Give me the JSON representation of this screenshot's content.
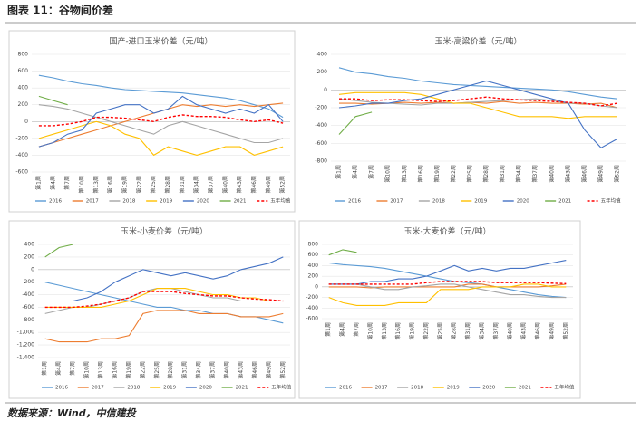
{
  "header": {
    "title": "图表 11：谷物间价差"
  },
  "source": "数据来源：Wind，中信建投",
  "chart_data": [
    {
      "type": "line",
      "title": "国产-进口玉米价差（元/吨）",
      "categories": [
        "第1周",
        "第4周",
        "第7周",
        "第10周",
        "第13周",
        "第16周",
        "第19周",
        "第22周",
        "第25周",
        "第28周",
        "第31周",
        "第34周",
        "第37周",
        "第40周",
        "第43周",
        "第46周",
        "第49周",
        "第52周"
      ],
      "ylim": [
        -600,
        800
      ],
      "yticks": [
        -600,
        -400,
        -200,
        0,
        200,
        400,
        600,
        800
      ],
      "series": [
        {
          "name": "2016",
          "color": "#5b9bd5",
          "values": [
            550,
            520,
            480,
            450,
            430,
            400,
            380,
            370,
            360,
            350,
            340,
            320,
            300,
            280,
            250,
            200,
            150,
            50
          ]
        },
        {
          "name": "2017",
          "color": "#ed7d31",
          "values": [
            -300,
            -250,
            -200,
            -150,
            -100,
            -50,
            0,
            50,
            100,
            150,
            200,
            180,
            200,
            180,
            200,
            180,
            200,
            220
          ]
        },
        {
          "name": "2018",
          "color": "#a5a5a5",
          "values": [
            200,
            180,
            150,
            100,
            50,
            0,
            -50,
            -100,
            -150,
            -50,
            0,
            -50,
            -100,
            -150,
            -200,
            -250,
            -250,
            -200
          ]
        },
        {
          "name": "2019",
          "color": "#ffc000",
          "values": [
            -200,
            -150,
            -100,
            -50,
            0,
            -50,
            -150,
            -200,
            -400,
            -300,
            -350,
            -400,
            -350,
            -300,
            -300,
            -400,
            -350,
            -300
          ]
        },
        {
          "name": "2020",
          "color": "#4472c4",
          "values": [
            -300,
            -250,
            -150,
            -100,
            100,
            150,
            200,
            200,
            100,
            150,
            300,
            200,
            150,
            100,
            150,
            100,
            200,
            0
          ]
        },
        {
          "name": "2021",
          "color": "#70ad47",
          "values": [
            300,
            250,
            200,
            null,
            null,
            null,
            null,
            null,
            null,
            null,
            null,
            null,
            null,
            null,
            null,
            null,
            null,
            null
          ]
        },
        {
          "name": "五年均值",
          "color": "#ff0000",
          "dashed": true,
          "values": [
            -50,
            -50,
            -30,
            0,
            50,
            50,
            40,
            20,
            0,
            50,
            80,
            60,
            60,
            50,
            20,
            0,
            20,
            -20
          ]
        }
      ]
    },
    {
      "type": "line",
      "title": "玉米-高粱价差（元/吨）",
      "categories": [
        "第1周",
        "第4周",
        "第7周",
        "第10周",
        "第13周",
        "第16周",
        "第19周",
        "第22周",
        "第25周",
        "第28周",
        "第31周",
        "第34周",
        "第37周",
        "第40周",
        "第43周",
        "第46周",
        "第49周",
        "第52周"
      ],
      "ylim": [
        -800,
        400
      ],
      "yticks": [
        -800,
        -600,
        -400,
        -200,
        0,
        200,
        400
      ],
      "series": [
        {
          "name": "2016",
          "color": "#5b9bd5",
          "values": [
            250,
            200,
            180,
            150,
            130,
            100,
            80,
            60,
            50,
            40,
            30,
            20,
            10,
            0,
            -20,
            -50,
            -80,
            -100
          ]
        },
        {
          "name": "2017",
          "color": "#ed7d31",
          "values": [
            -150,
            -150,
            -160,
            -150,
            -140,
            -150,
            -140,
            -150,
            -140,
            -150,
            -130,
            -150,
            -140,
            -150,
            -150,
            -160,
            -150,
            -200
          ]
        },
        {
          "name": "2018",
          "color": "#a5a5a5",
          "values": [
            -100,
            -120,
            -140,
            -150,
            -160,
            -170,
            -150,
            -150,
            -140,
            -130,
            -120,
            -110,
            -100,
            -120,
            -150,
            -150,
            -180,
            -200
          ]
        },
        {
          "name": "2019",
          "color": "#ffc000",
          "values": [
            -50,
            -30,
            -30,
            -30,
            -30,
            -50,
            -100,
            -150,
            -150,
            -200,
            -250,
            -300,
            -300,
            -300,
            -320,
            -300,
            -300,
            -300
          ]
        },
        {
          "name": "2020",
          "color": "#4472c4",
          "values": [
            -200,
            -180,
            -150,
            -150,
            -120,
            -100,
            -50,
            0,
            50,
            100,
            50,
            0,
            -50,
            -100,
            -150,
            -450,
            -650,
            -550
          ]
        },
        {
          "name": "2021",
          "color": "#70ad47",
          "values": [
            -500,
            -300,
            -250,
            null,
            null,
            null,
            null,
            null,
            null,
            null,
            null,
            null,
            null,
            null,
            null,
            null,
            null,
            null
          ]
        },
        {
          "name": "五年均值",
          "color": "#ff0000",
          "dashed": true,
          "values": [
            -100,
            -100,
            -120,
            -110,
            -110,
            -120,
            -130,
            -120,
            -100,
            -80,
            -100,
            -110,
            -120,
            -130,
            -140,
            -150,
            -180,
            -150
          ]
        }
      ]
    },
    {
      "type": "line",
      "title": "玉米-小麦价差（元/吨）",
      "categories": [
        "第1周",
        "第4周",
        "第7周",
        "第10周",
        "第13周",
        "第16周",
        "第19周",
        "第22周",
        "第25周",
        "第28周",
        "第31周",
        "第34周",
        "第37周",
        "第40周",
        "第43周",
        "第46周",
        "第49周",
        "第52周"
      ],
      "ylim": [
        -1400,
        400
      ],
      "yticks": [
        {
          "value": -1400,
          "label": "-1,400"
        },
        {
          "value": -1200,
          "label": "-1,200"
        },
        {
          "value": -1000,
          "label": "-1,000"
        },
        -800,
        -600,
        -400,
        -200,
        0,
        200,
        400
      ],
      "series": [
        {
          "name": "2016",
          "color": "#5b9bd5",
          "values": [
            -200,
            -250,
            -300,
            -350,
            -400,
            -450,
            -500,
            -550,
            -600,
            -600,
            -650,
            -650,
            -700,
            -700,
            -750,
            -750,
            -800,
            -850
          ]
        },
        {
          "name": "2017",
          "color": "#ed7d31",
          "values": [
            -1100,
            -1150,
            -1150,
            -1150,
            -1100,
            -1100,
            -1050,
            -700,
            -650,
            -650,
            -650,
            -700,
            -700,
            -700,
            -750,
            -750,
            -750,
            -700
          ]
        },
        {
          "name": "2018",
          "color": "#a5a5a5",
          "values": [
            -700,
            -650,
            -600,
            -600,
            -550,
            -500,
            -450,
            -350,
            -300,
            -300,
            -350,
            -400,
            -450,
            -450,
            -500,
            -500,
            -500,
            -500
          ]
        },
        {
          "name": "2019",
          "color": "#ffc000",
          "values": [
            -600,
            -600,
            -600,
            -600,
            -600,
            -550,
            -500,
            -400,
            -300,
            -300,
            -300,
            -350,
            -400,
            -400,
            -450,
            -450,
            -500,
            -500
          ]
        },
        {
          "name": "2020",
          "color": "#4472c4",
          "values": [
            -500,
            -500,
            -500,
            -450,
            -350,
            -200,
            -100,
            0,
            -50,
            -100,
            -50,
            -100,
            -150,
            -100,
            0,
            50,
            100,
            200
          ]
        },
        {
          "name": "2021",
          "color": "#70ad47",
          "values": [
            200,
            350,
            400,
            null,
            null,
            null,
            null,
            null,
            null,
            null,
            null,
            null,
            null,
            null,
            null,
            null,
            null,
            null
          ]
        },
        {
          "name": "五年均值",
          "color": "#ff0000",
          "dashed": true,
          "values": [
            -600,
            -600,
            -600,
            -580,
            -550,
            -500,
            -450,
            -350,
            -350,
            -350,
            -380,
            -400,
            -420,
            -420,
            -450,
            -470,
            -480,
            -500
          ]
        }
      ]
    },
    {
      "type": "line",
      "title": "玉米-大麦价差（元/吨）",
      "categories": [
        "第1周",
        "第4周",
        "第7周",
        "第10周",
        "第13周",
        "第16周",
        "第19周",
        "第22周",
        "第25周",
        "第28周",
        "第31周",
        "第34周",
        "第37周",
        "第40周",
        "第43周",
        "第46周",
        "第49周",
        "第52周"
      ],
      "ylim": [
        -600,
        800
      ],
      "yticks": [
        -600,
        -400,
        -200,
        0,
        200,
        400,
        600,
        800
      ],
      "series": [
        {
          "name": "2016",
          "color": "#5b9bd5",
          "values": [
            450,
            420,
            400,
            380,
            350,
            300,
            250,
            200,
            150,
            100,
            80,
            50,
            0,
            -50,
            -100,
            -150,
            -180,
            -200
          ]
        },
        {
          "name": "2017",
          "color": "#ed7d31",
          "values": [
            0,
            0,
            0,
            -20,
            0,
            0,
            0,
            0,
            0,
            0,
            50,
            50,
            0,
            0,
            0,
            0,
            20,
            50
          ]
        },
        {
          "name": "2018",
          "color": "#a5a5a5",
          "values": [
            50,
            50,
            50,
            0,
            -50,
            -50,
            0,
            20,
            50,
            50,
            0,
            -50,
            -100,
            -150,
            -150,
            -180,
            -200,
            -200
          ]
        },
        {
          "name": "2019",
          "color": "#ffc000",
          "values": [
            -200,
            -300,
            -350,
            -350,
            -350,
            -300,
            -300,
            -300,
            -50,
            -50,
            -50,
            0,
            0,
            0,
            50,
            50,
            0,
            0
          ]
        },
        {
          "name": "2020",
          "color": "#4472c4",
          "values": [
            50,
            50,
            50,
            100,
            100,
            150,
            150,
            200,
            300,
            400,
            300,
            350,
            300,
            350,
            350,
            400,
            450,
            500
          ]
        },
        {
          "name": "2021",
          "color": "#70ad47",
          "values": [
            600,
            700,
            650,
            null,
            null,
            null,
            null,
            null,
            null,
            null,
            null,
            null,
            null,
            null,
            null,
            null,
            null,
            null
          ]
        },
        {
          "name": "五年均值",
          "color": "#ff0000",
          "dashed": true,
          "values": [
            50,
            50,
            50,
            50,
            50,
            50,
            50,
            80,
            100,
            100,
            100,
            100,
            80,
            80,
            80,
            80,
            70,
            60
          ]
        }
      ]
    }
  ]
}
